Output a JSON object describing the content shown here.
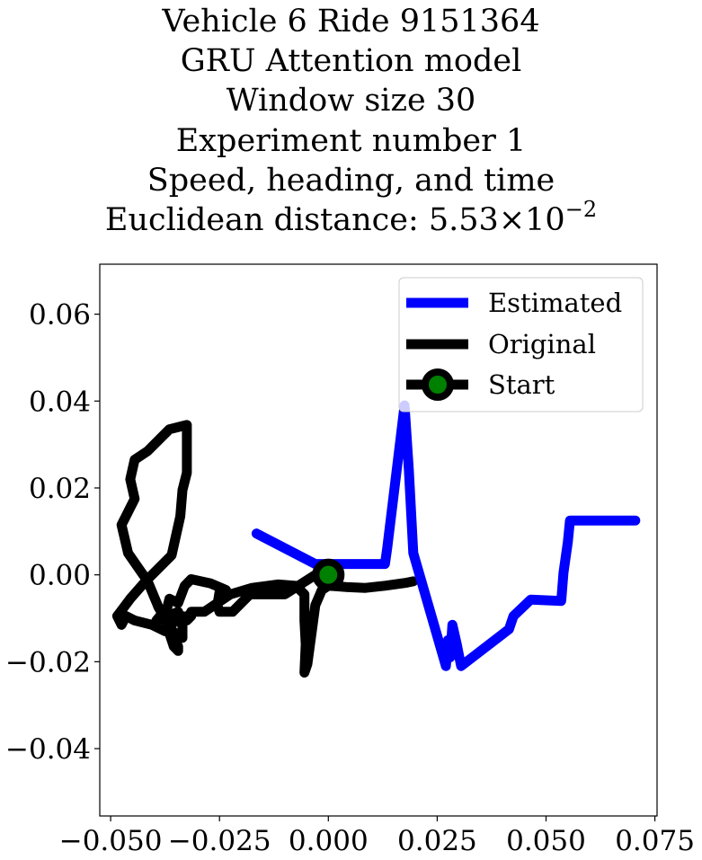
{
  "chart_data": {
    "type": "line",
    "title_lines": [
      "Vehicle 6 Ride 9151364",
      "GRU Attention model",
      "Window size 30",
      "Experiment number 1",
      "Speed, heading, and time"
    ],
    "title_metric_prefix": "Euclidean distance: ",
    "title_metric_mantissa": "5.53",
    "title_metric_times": "×10",
    "title_metric_exponent": "−2",
    "xlabel": "",
    "ylabel": "",
    "xlim": [
      -0.0525,
      0.0755
    ],
    "ylim": [
      -0.0555,
      0.0715
    ],
    "x_ticks": [
      {
        "value": -0.05,
        "label": "−0.050"
      },
      {
        "value": -0.025,
        "label": "−0.025"
      },
      {
        "value": 0.0,
        "label": "0.000"
      },
      {
        "value": 0.025,
        "label": "0.025"
      },
      {
        "value": 0.05,
        "label": "0.050"
      },
      {
        "value": 0.075,
        "label": "0.075"
      }
    ],
    "y_ticks": [
      {
        "value": 0.06,
        "label": "0.06"
      },
      {
        "value": 0.04,
        "label": "0.04"
      },
      {
        "value": 0.02,
        "label": "0.02"
      },
      {
        "value": 0.0,
        "label": "0.00"
      },
      {
        "value": -0.02,
        "label": "−0.02"
      },
      {
        "value": -0.04,
        "label": "−0.04"
      }
    ],
    "grid": false,
    "legend_position": "upper-right",
    "series": [
      {
        "name": "Estimated",
        "color": "#0000ff",
        "x": [
          -0.0165,
          -0.003,
          0.0,
          0.003,
          0.013,
          0.0135,
          0.0175,
          0.0185,
          0.0195,
          0.027,
          0.0275,
          0.028,
          0.0285,
          0.0295,
          0.0305,
          0.0415,
          0.0425,
          0.0465,
          0.0535,
          0.054,
          0.055,
          0.0555,
          0.0705
        ],
        "y": [
          0.0095,
          0.0025,
          0.0025,
          0.0025,
          0.0025,
          0.006,
          0.039,
          0.024,
          0.005,
          -0.021,
          -0.015,
          -0.019,
          -0.0115,
          -0.016,
          -0.021,
          -0.0125,
          -0.0095,
          -0.0057,
          -0.006,
          0.0005,
          0.0075,
          0.0125,
          0.0125
        ]
      },
      {
        "name": "Original",
        "color": "#000000",
        "x": [
          0.0,
          -0.003,
          -0.01,
          -0.018,
          -0.022,
          -0.025,
          -0.0255,
          -0.025,
          -0.0235,
          -0.027,
          -0.0315,
          -0.033,
          -0.0345,
          -0.0365,
          -0.037,
          -0.0395,
          -0.0345,
          -0.036,
          -0.036,
          -0.0355,
          -0.0345,
          -0.0345,
          -0.0355,
          -0.0365,
          -0.0375,
          -0.039,
          -0.0415,
          -0.046,
          -0.0475,
          -0.0445,
          -0.0455,
          -0.0445,
          -0.0415,
          -0.0365,
          -0.0325,
          -0.0325,
          -0.0325,
          -0.0335,
          -0.034,
          -0.036,
          -0.042,
          -0.0455,
          -0.0485,
          -0.0475,
          -0.0465,
          -0.0445,
          -0.0405,
          -0.0375,
          -0.0345,
          -0.0335,
          -0.0335,
          -0.034,
          -0.0325,
          -0.0315,
          -0.0325,
          -0.0315,
          -0.0285,
          -0.0255,
          -0.0225,
          -0.0175,
          -0.0115,
          -0.0075,
          -0.0055,
          -0.0055,
          -0.0052,
          -0.0055,
          -0.0048,
          -0.003,
          -0.0015,
          0.0,
          0.004,
          0.0085,
          0.013,
          0.018,
          0.0195
        ],
        "y": [
          0.0,
          0.0,
          -0.0045,
          -0.0045,
          -0.0085,
          -0.0085,
          -0.007,
          -0.004,
          -0.0035,
          -0.002,
          -0.001,
          -0.0025,
          -0.0065,
          -0.0055,
          -0.0075,
          -0.0105,
          -0.0085,
          -0.0095,
          -0.0125,
          -0.0145,
          -0.0165,
          -0.0175,
          -0.0165,
          -0.0135,
          -0.01,
          -0.0075,
          -0.0015,
          0.005,
          0.0115,
          0.0175,
          0.022,
          0.0265,
          0.0285,
          0.0335,
          0.0345,
          0.0285,
          0.0235,
          0.0195,
          0.0135,
          0.0045,
          -0.0015,
          -0.0055,
          -0.0095,
          -0.0115,
          -0.0095,
          -0.0105,
          -0.0115,
          -0.013,
          -0.0135,
          -0.0145,
          -0.0095,
          -0.011,
          -0.0095,
          -0.0095,
          -0.0105,
          -0.0085,
          -0.0085,
          -0.0065,
          -0.0045,
          -0.003,
          -0.0022,
          -0.0025,
          -0.0045,
          -0.0105,
          -0.016,
          -0.0225,
          -0.0205,
          -0.007,
          -0.0035,
          -0.0025,
          -0.0028,
          -0.003,
          -0.0025,
          -0.0018,
          -0.0015
        ]
      },
      {
        "name": "Start",
        "color": "#000000",
        "marker_face": "#008000",
        "x": [
          0.0
        ],
        "y": [
          0.0
        ]
      }
    ]
  }
}
